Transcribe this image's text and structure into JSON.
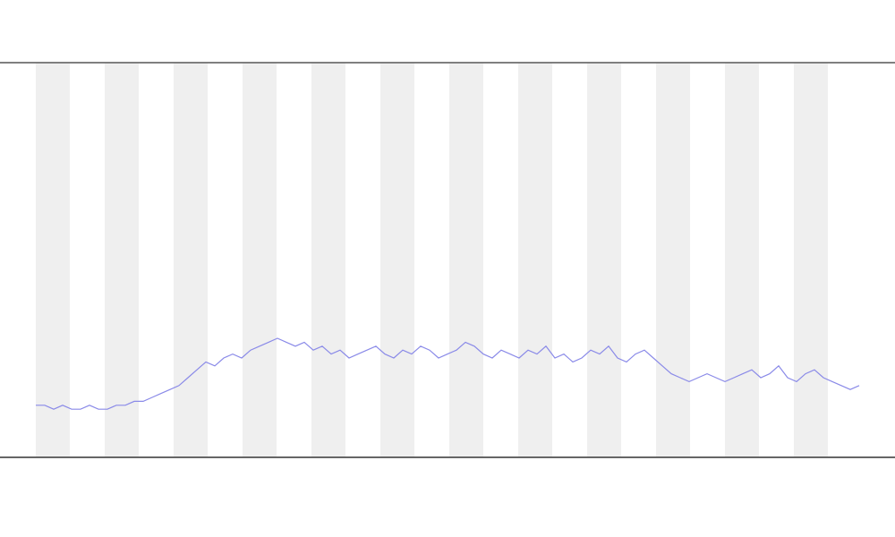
{
  "chart_data": {
    "type": "line",
    "color": "#8a8ae8",
    "ylim": [
      0,
      100
    ],
    "values": [
      13,
      13,
      12,
      13,
      12,
      12,
      13,
      12,
      12,
      13,
      13,
      14,
      14,
      15,
      16,
      17,
      18,
      20,
      22,
      24,
      23,
      25,
      26,
      25,
      27,
      28,
      29,
      30,
      29,
      28,
      29,
      27,
      28,
      26,
      27,
      25,
      26,
      27,
      28,
      26,
      25,
      27,
      26,
      28,
      27,
      25,
      26,
      27,
      29,
      28,
      26,
      25,
      27,
      26,
      25,
      27,
      26,
      28,
      25,
      26,
      24,
      25,
      27,
      26,
      28,
      25,
      24,
      26,
      27,
      25,
      23,
      21,
      20,
      19,
      20,
      21,
      20,
      19,
      20,
      21,
      22,
      20,
      21,
      23,
      20,
      19,
      21,
      22,
      20,
      19,
      18,
      17,
      18
    ]
  }
}
